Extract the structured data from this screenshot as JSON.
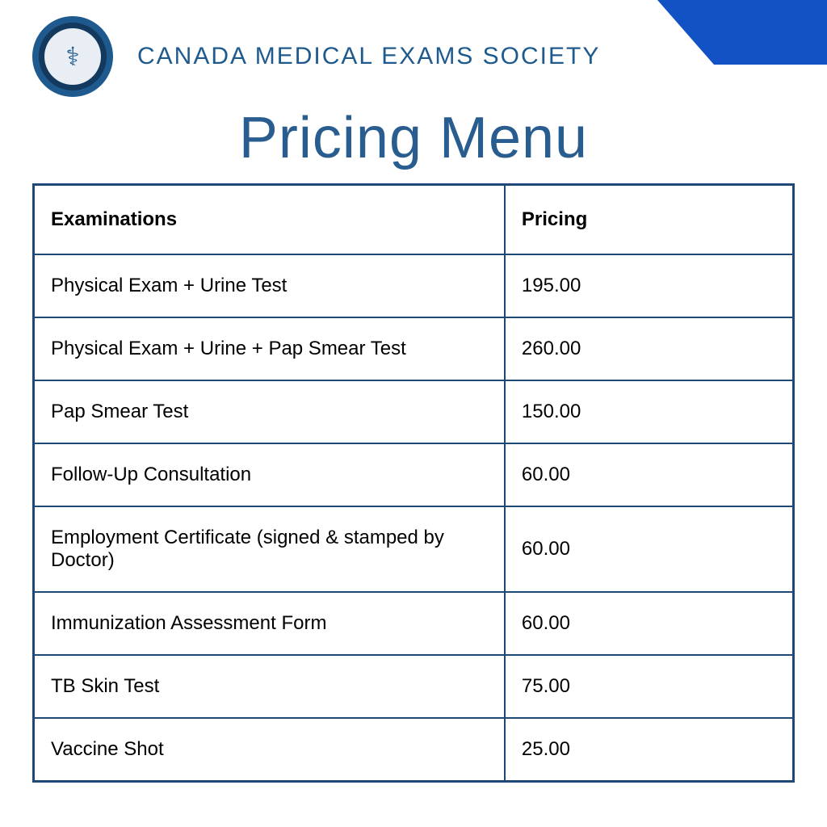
{
  "accent_color": "#1352c4",
  "border_color": "#1e4976",
  "title_color": "#2a5d8f",
  "header_color": "#1e5a8e",
  "logo": {
    "outer_bg": "#13395f",
    "ring": "#1e5a8e",
    "inner_bg": "#e8eef4",
    "symbol": "⚕"
  },
  "org_name": "CANADA MEDICAL EXAMS SOCIETY",
  "page_title": "Pricing Menu",
  "table": {
    "columns": [
      "Examinations",
      "Pricing"
    ],
    "rows": [
      {
        "exam": "Physical Exam + Urine Test",
        "price": "195.00"
      },
      {
        "exam": "Physical Exam + Urine + Pap Smear Test",
        "price": "260.00"
      },
      {
        "exam": "Pap Smear Test",
        "price": "150.00"
      },
      {
        "exam": "Follow-Up Consultation",
        "price": "60.00"
      },
      {
        "exam": "Employment Certificate (signed & stamped by Doctor)",
        "price": "60.00"
      },
      {
        "exam": "Immunization Assessment Form",
        "price": "60.00"
      },
      {
        "exam": "TB Skin Test",
        "price": "75.00"
      },
      {
        "exam": "Vaccine Shot",
        "price": "25.00"
      }
    ]
  }
}
